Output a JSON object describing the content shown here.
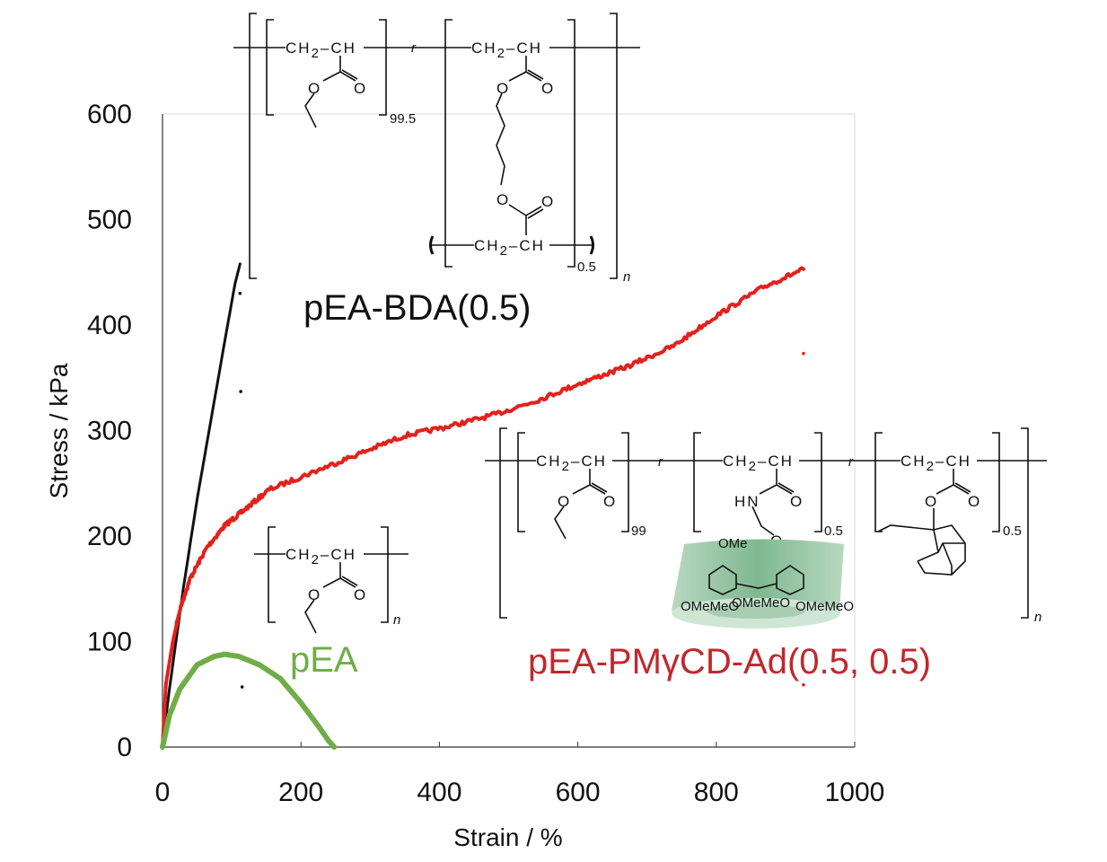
{
  "chart_data": {
    "type": "line",
    "xlabel": "Strain / %",
    "ylabel": "Stress / kPa",
    "xlim": [
      0,
      1000
    ],
    "ylim": [
      0,
      600
    ],
    "xticks": [
      "0",
      "200",
      "400",
      "600",
      "800",
      "1000"
    ],
    "yticks": [
      "0",
      "100",
      "200",
      "300",
      "400",
      "500",
      "600"
    ],
    "grid": false,
    "series": [
      {
        "name": "pEA-BDA(0.5)",
        "color": "#111111",
        "x": [
          0,
          10,
          30,
          50,
          70,
          90,
          105,
          112
        ],
        "y": [
          0,
          55,
          150,
          235,
          310,
          385,
          440,
          458
        ],
        "outliers": [
          [
            112,
            430
          ],
          [
            113,
            337
          ],
          [
            115,
            57
          ]
        ]
      },
      {
        "name": "pEA-PMγCD-Ad(0.5, 0.5)",
        "color": "#e3211c",
        "x": [
          0,
          5,
          15,
          25,
          40,
          64,
          90,
          115,
          154,
          219,
          284,
          349,
          414,
          479,
          543,
          608,
          673,
          738,
          803,
          868,
          926
        ],
        "y": [
          0,
          60,
          100,
          130,
          160,
          189,
          210,
          223,
          244,
          261,
          278,
          295,
          304,
          315,
          329,
          346,
          361,
          380,
          410,
          436,
          453
        ],
        "outliers": [
          [
            926,
            373
          ],
          [
            926,
            59
          ]
        ]
      },
      {
        "name": "pEA",
        "color": "#70ad47",
        "x": [
          0,
          10,
          25,
          50,
          75,
          90,
          110,
          140,
          170,
          200,
          225,
          240,
          248
        ],
        "y": [
          0,
          30,
          55,
          78,
          86,
          88,
          86,
          78,
          65,
          42,
          20,
          6,
          0
        ]
      }
    ]
  },
  "labels": {
    "bda": "pEA-BDA(0.5)",
    "pea": "pEA",
    "cd": "pEA-PMγCD-Ad(0.5, 0.5)",
    "bda_color": "#111111",
    "pea_color": "#70ad47",
    "cd_color": "#c0282d"
  },
  "chem": {
    "ch2": "CH",
    "two": "2",
    "ch": "–CH",
    "o": "O",
    "hn": "HN",
    "r": "r",
    "n": "n",
    "sub_995": "99.5",
    "sub_05": "0.5",
    "sub_99": "99",
    "ome": "OMe",
    "omemeo": "OMeMeO"
  }
}
